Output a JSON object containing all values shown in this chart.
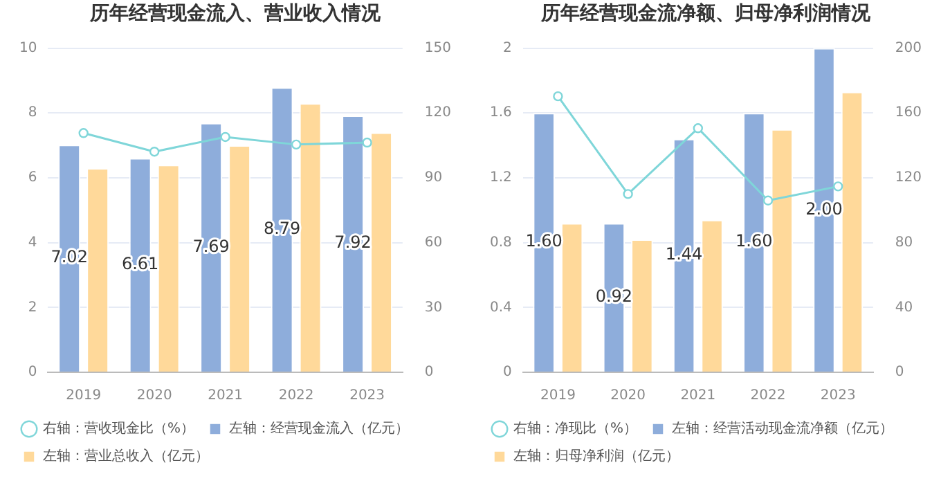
{
  "chart_data": [
    {
      "type": "bar",
      "title": "历年经营现金流入、营业收入情况",
      "categories": [
        "2019",
        "2020",
        "2021",
        "2022",
        "2023"
      ],
      "series": [
        {
          "name": "左轴：经营现金流入（亿元）",
          "color": "#8eaddb",
          "values": [
            7.02,
            6.61,
            7.69,
            8.79,
            7.92
          ],
          "value_labels": [
            "7.02",
            "6.61",
            "7.69",
            "8.79",
            "7.92"
          ]
        },
        {
          "name": "左轴：营业总收入（亿元）",
          "color": "#ffd99a",
          "values": [
            6.3,
            6.4,
            7.0,
            8.3,
            7.4
          ]
        },
        {
          "name": "右轴：营收现金比（%）",
          "color": "#7fd6d9",
          "type": "line",
          "axis": "y2",
          "values": [
            110.7,
            102.1,
            108.9,
            105.4,
            106.3
          ]
        }
      ],
      "ylim": [
        0,
        10
      ],
      "yticks": [
        0,
        2,
        4,
        6,
        8,
        10
      ],
      "y2lim": [
        0,
        150
      ],
      "y2ticks": [
        0,
        30,
        60,
        90,
        120,
        150
      ],
      "grid": "y",
      "legend": "bottom left",
      "marker": "circle"
    },
    {
      "type": "bar",
      "title": "历年经营现金流净额、归母净利润情况",
      "categories": [
        "2019",
        "2020",
        "2021",
        "2022",
        "2023"
      ],
      "series": [
        {
          "name": "左轴：经营活动现金流净额（亿元）",
          "color": "#8eaddb",
          "values": [
            1.6,
            0.92,
            1.44,
            1.6,
            2.0
          ],
          "value_labels": [
            "1.60",
            "0.92",
            "1.44",
            "1.60",
            "2.00"
          ]
        },
        {
          "name": "左轴：归母净利润（亿元）",
          "color": "#ffd99a",
          "values": [
            0.92,
            0.82,
            0.94,
            1.5,
            1.73
          ]
        },
        {
          "name": "右轴：净现比（%）",
          "color": "#7fd6d9",
          "type": "line",
          "axis": "y2",
          "values": [
            170.3,
            110,
            150.6,
            106,
            114.7
          ]
        }
      ],
      "ylim": [
        0,
        2
      ],
      "yticks": [
        0,
        0.4,
        0.8,
        1.2,
        1.6,
        2
      ],
      "y2lim": [
        0,
        200
      ],
      "y2ticks": [
        0,
        40,
        80,
        120,
        160,
        200
      ],
      "grid": "y",
      "legend": "bottom left",
      "marker": "circle"
    }
  ]
}
